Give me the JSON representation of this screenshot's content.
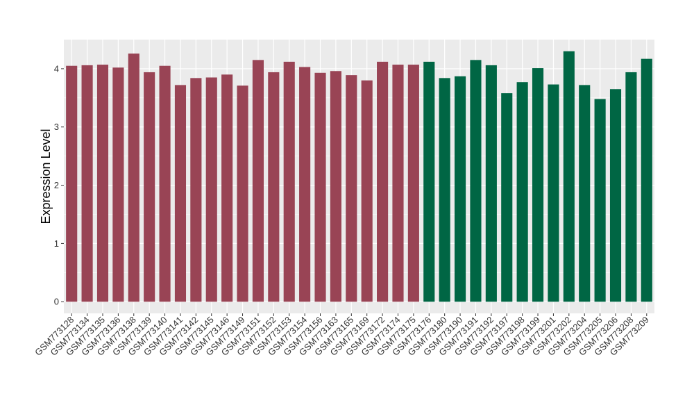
{
  "chart_data": {
    "type": "bar",
    "title": "",
    "xlabel": "",
    "ylabel": "Expression Level",
    "ylim": [
      -0.2,
      4.5
    ],
    "yticks": [
      0,
      1,
      2,
      3,
      4
    ],
    "grid": true,
    "legend": "none",
    "categories": [
      "GSM773128",
      "GSM773134",
      "GSM773135",
      "GSM773136",
      "GSM773138",
      "GSM773139",
      "GSM773140",
      "GSM773141",
      "GSM773142",
      "GSM773145",
      "GSM773146",
      "GSM773149",
      "GSM773151",
      "GSM773152",
      "GSM773153",
      "GSM773154",
      "GSM773156",
      "GSM773163",
      "GSM773165",
      "GSM773169",
      "GSM773172",
      "GSM773174",
      "GSM773175",
      "GSM773176",
      "GSM773180",
      "GSM773190",
      "GSM773191",
      "GSM773192",
      "GSM773197",
      "GSM773198",
      "GSM773199",
      "GSM773201",
      "GSM773202",
      "GSM773204",
      "GSM773205",
      "GSM773206",
      "GSM773208",
      "GSM773209"
    ],
    "values": [
      4.05,
      4.06,
      4.07,
      4.02,
      4.26,
      3.94,
      4.05,
      3.72,
      3.84,
      3.85,
      3.9,
      3.71,
      4.15,
      3.94,
      4.12,
      4.03,
      3.93,
      3.96,
      3.89,
      3.8,
      4.12,
      4.07,
      4.07,
      4.12,
      3.84,
      3.87,
      4.15,
      4.06,
      3.58,
      3.77,
      4.01,
      3.73,
      4.3,
      3.72,
      3.48,
      3.65,
      3.94,
      4.17
    ],
    "groups": [
      "A",
      "A",
      "A",
      "A",
      "A",
      "A",
      "A",
      "A",
      "A",
      "A",
      "A",
      "A",
      "A",
      "A",
      "A",
      "A",
      "A",
      "A",
      "A",
      "A",
      "A",
      "A",
      "A",
      "B",
      "B",
      "B",
      "B",
      "B",
      "B",
      "B",
      "B",
      "B",
      "B",
      "B",
      "B",
      "B",
      "B",
      "B"
    ],
    "colors": {
      "A": "#994455",
      "B": "#006644"
    },
    "panel_background": "#ebebeb",
    "grid_color": "#ffffff"
  }
}
